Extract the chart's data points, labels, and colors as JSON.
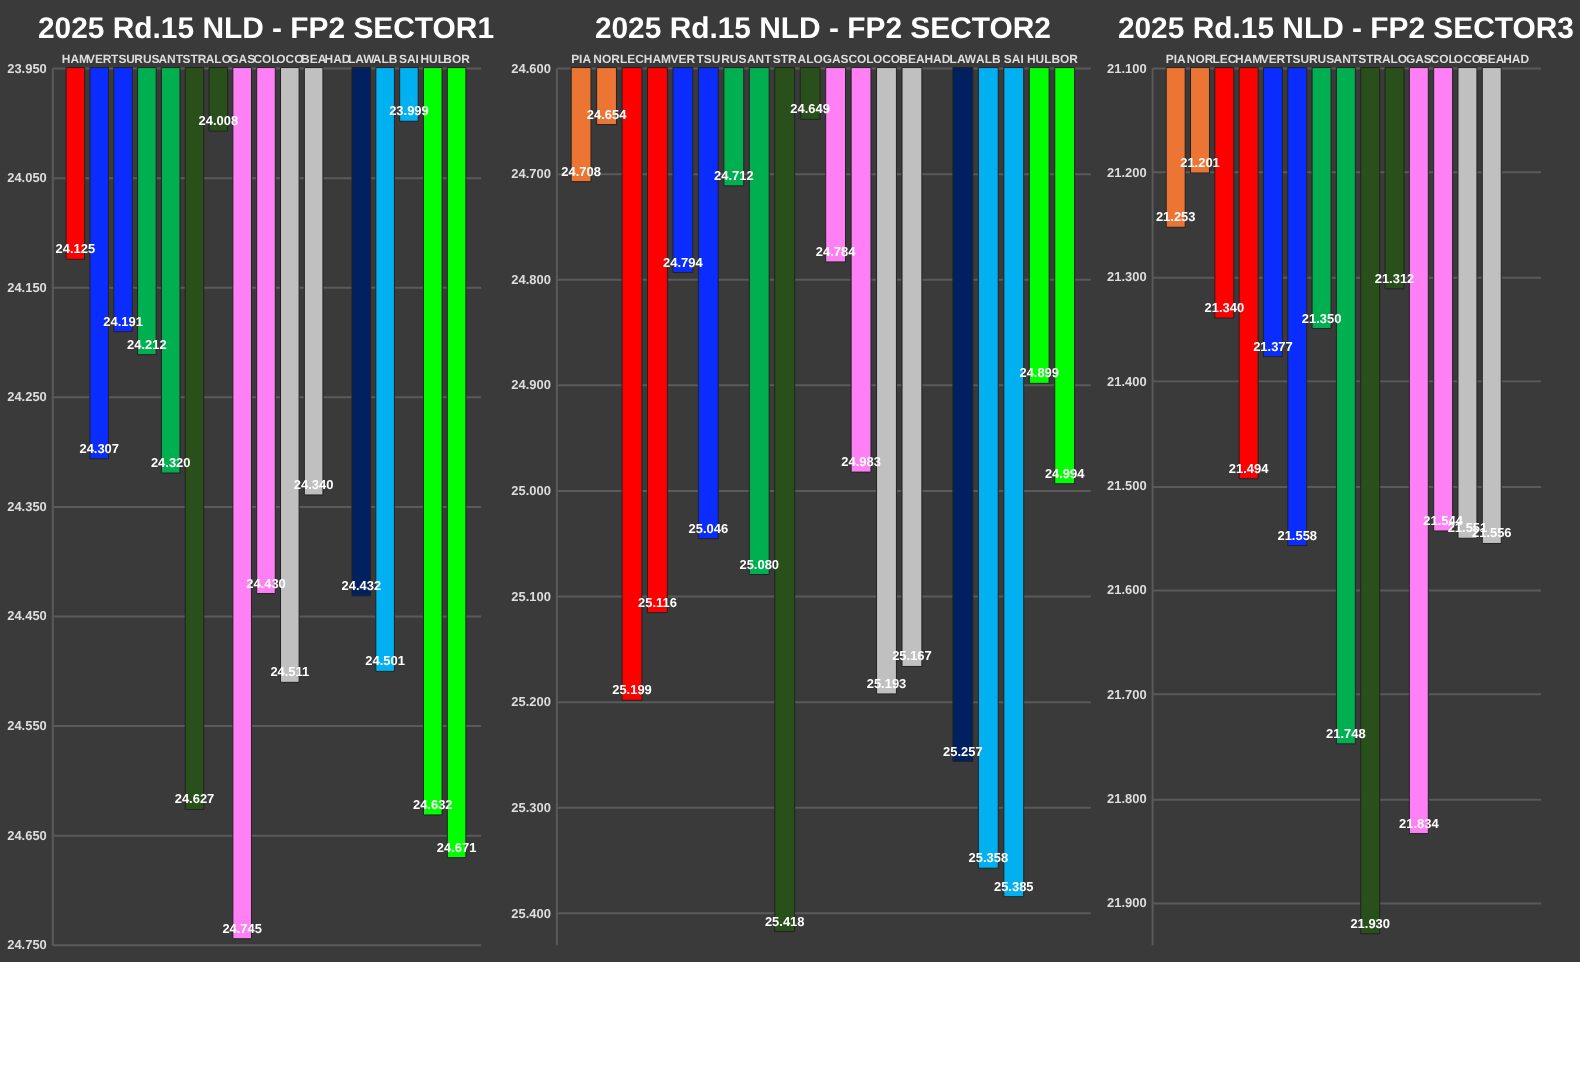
{
  "chart_data": [
    {
      "type": "bar",
      "title": "2025 Rd.15 NLD - FP2 SECTOR1",
      "categories": [
        "HAM",
        "VER",
        "TSU",
        "RUS",
        "ANT",
        "STR",
        "ALO",
        "GAS",
        "COL",
        "OCO",
        "BEA",
        "HAD",
        "LAW",
        "ALB",
        "SAI",
        "HUL",
        "BOR"
      ],
      "values": [
        24.125,
        24.307,
        24.191,
        24.212,
        24.32,
        24.627,
        24.008,
        24.745,
        24.43,
        24.511,
        24.34,
        null,
        24.432,
        24.501,
        23.999,
        24.632,
        24.671
      ],
      "value_labels": [
        "24.125",
        "24.307",
        "24.191",
        "24.212",
        "24.320",
        "24.627",
        "24.008",
        "24.745",
        "24.430",
        "24.511",
        "24.340",
        null,
        "24.432",
        "24.501",
        "23.999",
        "24.632",
        "24.671"
      ],
      "colors": [
        "#ff0000",
        "#0a2cff",
        "#0a2cff",
        "#00b050",
        "#00b050",
        "#29501a",
        "#29501a",
        "#ff80f4",
        "#ff80f4",
        "#c0c0c0",
        "#c0c0c0",
        "#c0c0c0",
        "#002060",
        "#00b0f0",
        "#00b0f0",
        "#00ff00",
        "#00ff00"
      ],
      "ylim": [
        24.75,
        23.95
      ],
      "yticks": [
        {
          "value": 23.95,
          "label": "23.950"
        },
        {
          "value": 24.05,
          "label": "24.050"
        },
        {
          "value": 24.15,
          "label": "24.150"
        },
        {
          "value": 24.25,
          "label": "24.250"
        },
        {
          "value": 24.35,
          "label": "24.350"
        },
        {
          "value": 24.45,
          "label": "24.450"
        },
        {
          "value": 24.55,
          "label": "24.550"
        },
        {
          "value": 24.65,
          "label": "24.650"
        },
        {
          "value": 24.75,
          "label": "24.750"
        }
      ],
      "grid": "y"
    },
    {
      "type": "bar",
      "title": "2025 Rd.15 NLD - FP2 SECTOR2",
      "categories": [
        "PIA",
        "NOR",
        "LEC",
        "HAM",
        "VER",
        "TSU",
        "RUS",
        "ANT",
        "STR",
        "ALO",
        "GAS",
        "COL",
        "OCO",
        "BEA",
        "HAD",
        "LAW",
        "ALB",
        "SAI",
        "HUL",
        "BOR"
      ],
      "values": [
        24.708,
        24.654,
        25.199,
        25.116,
        24.794,
        25.046,
        24.712,
        25.08,
        25.418,
        24.649,
        24.784,
        24.983,
        25.193,
        25.167,
        null,
        25.257,
        25.358,
        25.385,
        24.899,
        24.994
      ],
      "value_labels": [
        "24.708",
        "24.654",
        "25.199",
        "25.116",
        "24.794",
        "25.046",
        "24.712",
        "25.080",
        "25.418",
        "24.649",
        "24.784",
        "24.983",
        "25.193",
        "25.167",
        null,
        "25.257",
        "25.358",
        "25.385",
        "24.899",
        "24.994"
      ],
      "colors": [
        "#ed7533",
        "#ed7533",
        "#ff0000",
        "#ff0000",
        "#0a2cff",
        "#0a2cff",
        "#00b050",
        "#00b050",
        "#29501a",
        "#29501a",
        "#ff80f4",
        "#ff80f4",
        "#c0c0c0",
        "#c0c0c0",
        "#c0c0c0",
        "#002060",
        "#00b0f0",
        "#00b0f0",
        "#00ff00",
        "#00ff00"
      ],
      "ylim": [
        25.43,
        24.6
      ],
      "yticks": [
        {
          "value": 24.6,
          "label": "24.600"
        },
        {
          "value": 24.7,
          "label": "24.700"
        },
        {
          "value": 24.8,
          "label": "24.800"
        },
        {
          "value": 24.9,
          "label": "24.900"
        },
        {
          "value": 25.0,
          "label": "25.000"
        },
        {
          "value": 25.1,
          "label": "25.100"
        },
        {
          "value": 25.2,
          "label": "25.200"
        },
        {
          "value": 25.3,
          "label": "25.300"
        },
        {
          "value": 25.4,
          "label": "25.400"
        }
      ],
      "grid": "y"
    },
    {
      "type": "bar",
      "title": "2025 Rd.15 NLD - FP2 SECTOR3",
      "categories": [
        "PIA",
        "NOR",
        "LEC",
        "HAM",
        "VER",
        "TSU",
        "RUS",
        "ANT",
        "STR",
        "ALO",
        "GAS",
        "COL",
        "OCO",
        "BEA",
        "HAD"
      ],
      "values": [
        21.253,
        21.201,
        21.34,
        21.494,
        21.377,
        21.558,
        21.35,
        21.748,
        21.93,
        21.312,
        21.834,
        21.544,
        21.551,
        21.556,
        null
      ],
      "value_labels": [
        "21.253",
        "21.201",
        "21.340",
        "21.494",
        "21.377",
        "21.558",
        "21.350",
        "21.748",
        "21.930",
        "21.312",
        "21.834",
        "21.544",
        "21.551",
        "21.556",
        null
      ],
      "colors": [
        "#ed7533",
        "#ed7533",
        "#ff0000",
        "#ff0000",
        "#0a2cff",
        "#0a2cff",
        "#00b050",
        "#00b050",
        "#29501a",
        "#29501a",
        "#ff80f4",
        "#ff80f4",
        "#c0c0c0",
        "#c0c0c0",
        "#c0c0c0"
      ],
      "ylim": [
        21.94,
        21.1
      ],
      "yticks": [
        {
          "value": 21.1,
          "label": "21.100"
        },
        {
          "value": 21.2,
          "label": "21.200"
        },
        {
          "value": 21.3,
          "label": "21.300"
        },
        {
          "value": 21.4,
          "label": "21.400"
        },
        {
          "value": 21.5,
          "label": "21.500"
        },
        {
          "value": 21.6,
          "label": "21.600"
        },
        {
          "value": 21.7,
          "label": "21.700"
        },
        {
          "value": 21.8,
          "label": "21.800"
        },
        {
          "value": 21.9,
          "label": "21.900"
        }
      ],
      "grid": "y"
    }
  ]
}
